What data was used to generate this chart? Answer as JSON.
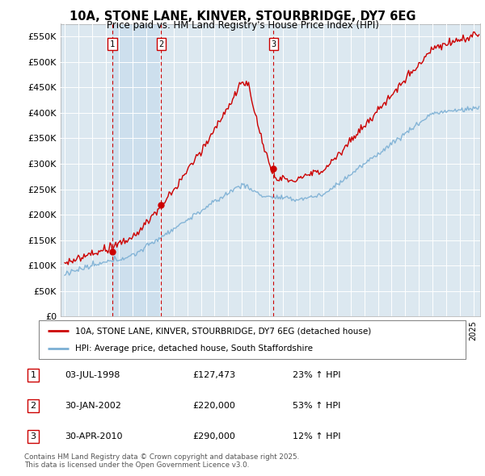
{
  "title_line1": "10A, STONE LANE, KINVER, STOURBRIDGE, DY7 6EG",
  "title_line2": "Price paid vs. HM Land Registry's House Price Index (HPI)",
  "ylabel_ticks": [
    "£0",
    "£50K",
    "£100K",
    "£150K",
    "£200K",
    "£250K",
    "£300K",
    "£350K",
    "£400K",
    "£450K",
    "£500K",
    "£550K"
  ],
  "ytick_values": [
    0,
    50000,
    100000,
    150000,
    200000,
    250000,
    300000,
    350000,
    400000,
    450000,
    500000,
    550000
  ],
  "ylim": [
    0,
    575000
  ],
  "xlim_start": 1994.7,
  "xlim_end": 2025.5,
  "sale_dates": [
    1998.5,
    2002.08,
    2010.33
  ],
  "sale_prices": [
    127473,
    220000,
    290000
  ],
  "sale_labels": [
    "1",
    "2",
    "3"
  ],
  "legend_line1": "10A, STONE LANE, KINVER, STOURBRIDGE, DY7 6EG (detached house)",
  "legend_line2": "HPI: Average price, detached house, South Staffordshire",
  "table_rows": [
    {
      "num": "1",
      "date": "03-JUL-1998",
      "price": "£127,473",
      "change": "23% ↑ HPI"
    },
    {
      "num": "2",
      "date": "30-JAN-2002",
      "price": "£220,000",
      "change": "53% ↑ HPI"
    },
    {
      "num": "3",
      "date": "30-APR-2010",
      "price": "£290,000",
      "change": "12% ↑ HPI"
    }
  ],
  "footnote": "Contains HM Land Registry data © Crown copyright and database right 2025.\nThis data is licensed under the Open Government Licence v3.0.",
  "red_color": "#cc0000",
  "blue_color": "#7bafd4",
  "bg_color": "#dce8f0",
  "shade_color": "#c8dcec"
}
